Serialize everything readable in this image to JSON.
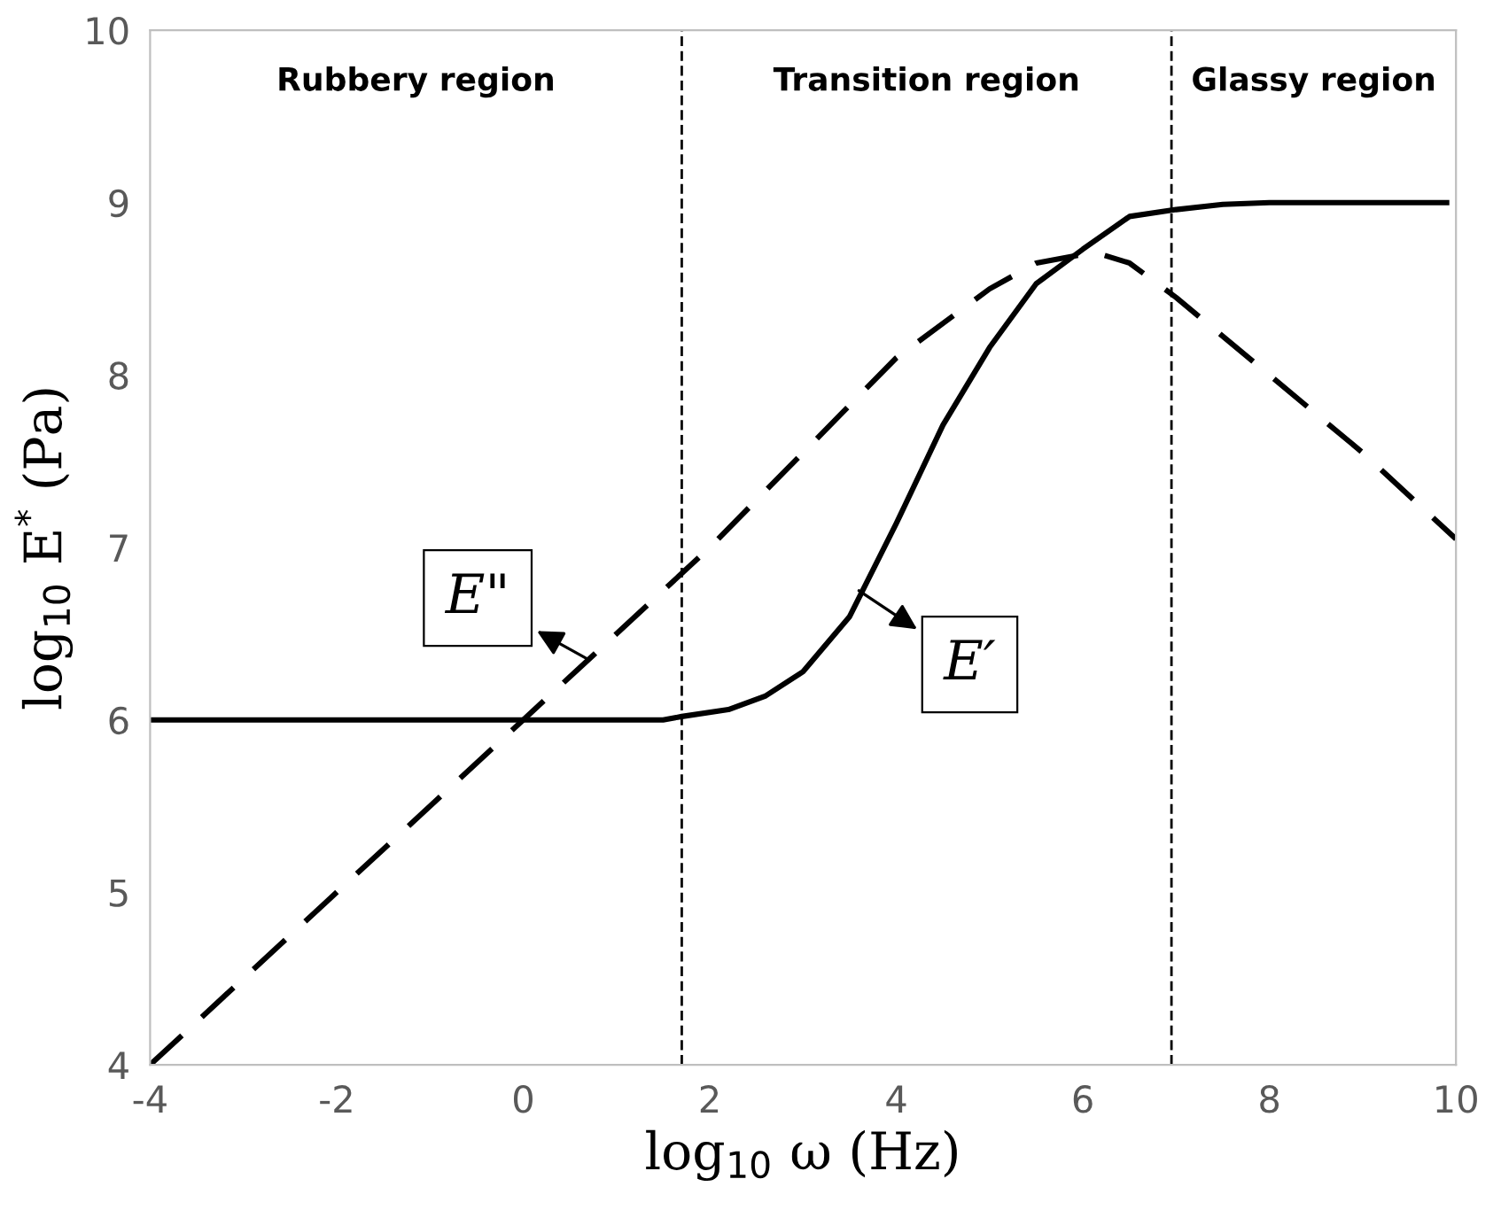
{
  "chart_data": {
    "type": "line",
    "xlabel": "log$_{10}$ ω (Hz)",
    "ylabel": "log$_{10}$ E$^{*}$ (Pa)",
    "xlim": [
      -4,
      10
    ],
    "xticks": [
      -4,
      -2,
      0,
      2,
      4,
      6,
      8,
      10
    ],
    "ylim": [
      4,
      10
    ],
    "yticks": [
      4,
      5,
      6,
      7,
      8,
      9,
      10
    ],
    "grid": false,
    "series": [
      {
        "color": "#000000",
        "line_style": "solid",
        "x": [
          -4,
          1.5,
          1.7,
          2.2,
          2.6,
          3,
          3.5,
          4,
          4.5,
          5,
          5.5,
          6,
          6.5,
          7,
          7.5,
          8,
          9,
          9.9
        ],
        "values": [
          6,
          6,
          6.02,
          6.06,
          6.14,
          6.28,
          6.6,
          7.14,
          7.71,
          8.16,
          8.53,
          8.73,
          8.92,
          8.96,
          8.99,
          9,
          9,
          9
        ]
      },
      {
        "color": "#000000",
        "line_style": "dashed",
        "x": [
          -4,
          0,
          1.7,
          2,
          3,
          4,
          5,
          5.5,
          6,
          6.2,
          6.5,
          7,
          8,
          9,
          10
        ],
        "values": [
          4,
          6,
          6.85,
          7,
          7.55,
          8.1,
          8.5,
          8.65,
          8.7,
          8.7,
          8.65,
          8.45,
          8,
          7.55,
          7.05
        ]
      }
    ],
    "ref_lines": [
      {
        "axis": "x",
        "value": 1.7,
        "color": "#000000",
        "line_style": "dashed"
      },
      {
        "axis": "x",
        "value": 6.95,
        "color": "#000000",
        "line_style": "dashed"
      }
    ],
    "annotations": [
      "Rubbery region",
      "Transition region",
      "Glassy region",
      {
        "text": "E\"",
        "x": 0.7,
        "y": 6.35
      },
      {
        "text": "E′",
        "x": 3.6,
        "y": 6.75
      }
    ]
  }
}
